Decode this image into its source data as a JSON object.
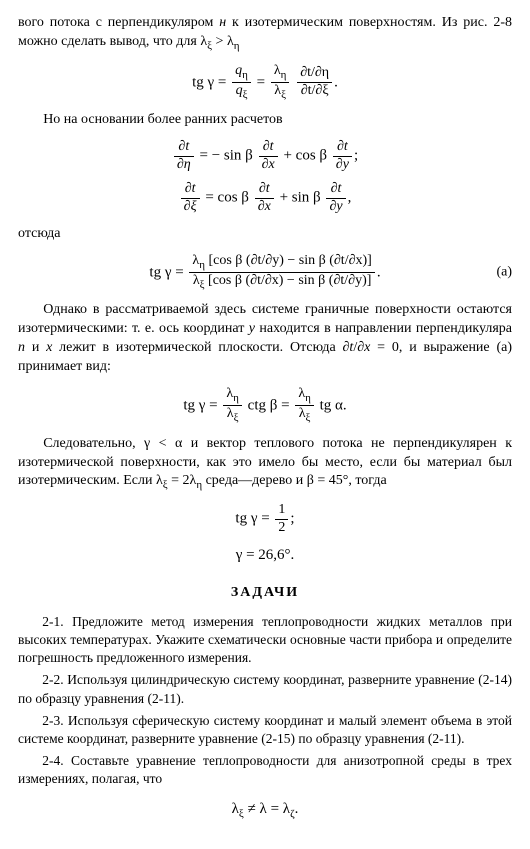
{
  "para1_a": "вого потока с перпендикуляром ",
  "para1_i": "н",
  "para1_b": " к изотермическим поверхностям. Из рис. 2-8 можно сделать вывод, что для λ",
  "para1_sub1": "ξ",
  "para1_c": " > λ",
  "para1_sub2": "η",
  "eq1_tg": "tg γ =",
  "eq1_num1": "q",
  "eq1_numsub1": "η",
  "eq1_den1": "q",
  "eq1_densub1": "ξ",
  "eq1_num2": "λ",
  "eq1_numsub2": "η",
  "eq1_den2": "λ",
  "eq1_densub2": "ξ",
  "eq1_num3": "∂t/∂η",
  "eq1_den3": "∂t/∂ξ",
  "eq1_end": ".",
  "para2": "Но на основании более ранних расчетов",
  "eq2_lhs_num": "∂t",
  "eq2_lhs_den": "∂η",
  "eq2_a": "= − sin β ",
  "eq2_f1n": "∂t",
  "eq2_f1d": "∂x",
  "eq2_b": " + cos β ",
  "eq2_f2n": "∂t",
  "eq2_f2d": "∂y",
  "eq2_end": ";",
  "eq3_lhs_num": "∂t",
  "eq3_lhs_den": "∂ξ",
  "eq3_a": "= cos β ",
  "eq3_f1n": "∂t",
  "eq3_f1d": "∂x",
  "eq3_b": " + sin β ",
  "eq3_f2n": "∂t",
  "eq3_f2d": "∂y",
  "eq3_end": ",",
  "para3": "отсюда",
  "eq4_tg": "tg γ =",
  "eq4_num_a": "λ",
  "eq4_num_sub": "η",
  "eq4_num_b": " [cos β (∂t/∂y) − sin β (∂t/∂x)]",
  "eq4_den_a": "λ",
  "eq4_den_sub": "ξ",
  "eq4_den_b": " [cos β (∂t/∂x) − sin β (∂t/∂y)]",
  "eq4_end": ".",
  "eq4_label": "(а)",
  "para4_a": "Однако в рассматриваемой здесь системе граничные поверхности остаются изотермическими: т. е. ось координат ",
  "para4_i1": "y",
  "para4_b": " находится в направлении перпендикуляра ",
  "para4_i2": "п",
  "para4_c": " и ",
  "para4_i3": "x",
  "para4_d": " лежит в изотермической плоскости. Отсюда ∂",
  "para4_i4": "t",
  "para4_e": "/∂",
  "para4_i5": "x",
  "para4_f": " = 0, и выражение (а) принимает вид:",
  "eq5_tg": "tg γ =",
  "eq5_num1": "λ",
  "eq5_numsub1": "η",
  "eq5_den1": "λ",
  "eq5_densub1": "ξ",
  "eq5_mid": "ctg β =",
  "eq5_num2": "λ",
  "eq5_numsub2": "η",
  "eq5_den2": "λ",
  "eq5_densub2": "ξ",
  "eq5_end": " tg α.",
  "para5_a": "Следовательно, γ < α и вектор теплового потока не перпендикулярен к изотермической поверхности, как это имело бы место, если бы материал был изотермическим. Если λ",
  "para5_sub1": "ξ",
  "para5_b": " = 2λ",
  "para5_sub2": "η",
  "para5_c": " среда—дерево и β = 45°, тогда",
  "eq6_tg": "tg γ =",
  "eq6_num": "1",
  "eq6_den": "2",
  "eq6_end": ";",
  "eq7": "γ = 26,6°.",
  "section": "ЗАДАЧИ",
  "task1": "2-1. Предложите метод измерения теплопроводности жидких металлов при высоких температурах. Укажите схематически основные части прибора и определите погрешность предложенного измерения.",
  "task2": "2-2. Используя цилиндрическую систему координат, разверните уравнение (2-14) по образцу уравнения (2-11).",
  "task3": "2-3. Используя сферическую систему координат и малый элемент объема в этой системе координат, разверните уравнение (2-15) по образцу уравнения (2-11).",
  "task4": "2-4. Составьте уравнение теплопроводности для анизотропной среды в трех измерениях, полагая, что",
  "eq8_a": "λ",
  "eq8_sub1": "ξ",
  "eq8_b": " ≠ λ  = λ",
  "eq8_sub2": "ζ",
  "eq8_end": "."
}
